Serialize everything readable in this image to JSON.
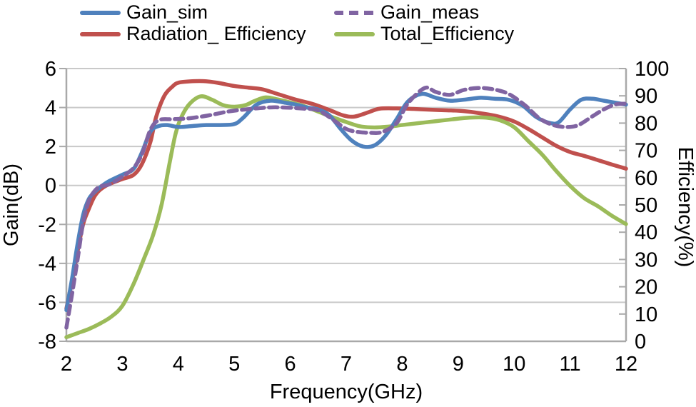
{
  "chart_data": {
    "type": "line",
    "title": "",
    "xlabel": "Frequency(GHz)",
    "ylabel_left": "Gain(dB)",
    "ylabel_right": "Efficiency(%)",
    "x_range": [
      2,
      12
    ],
    "x_ticks": [
      2,
      3,
      4,
      5,
      6,
      7,
      8,
      9,
      10,
      11,
      12
    ],
    "y_left_range": [
      -8,
      6
    ],
    "y_left_ticks": [
      6,
      4,
      2,
      0,
      -2,
      -4,
      -6,
      -8
    ],
    "y_right_range": [
      0,
      100
    ],
    "y_right_ticks": [
      100,
      90,
      80,
      70,
      60,
      50,
      40,
      30,
      20,
      10,
      0
    ],
    "grid": "horizontal-only",
    "legend_position": "top",
    "colors": {
      "grid": "#c9c9c9",
      "axis": "#a9a9a9",
      "text": "#000000"
    },
    "series": [
      {
        "name": "Gain_sim",
        "axis": "left",
        "color": "#4F81BD",
        "style": "solid",
        "points": [
          [
            2.0,
            -6.4
          ],
          [
            2.1,
            -4.8
          ],
          [
            2.2,
            -3.0
          ],
          [
            2.3,
            -1.5
          ],
          [
            2.4,
            -0.7
          ],
          [
            2.5,
            -0.35
          ],
          [
            2.6,
            -0.1
          ],
          [
            2.75,
            0.2
          ],
          [
            3.0,
            0.55
          ],
          [
            3.2,
            0.85
          ],
          [
            3.35,
            1.7
          ],
          [
            3.5,
            2.75
          ],
          [
            3.65,
            3.05
          ],
          [
            3.8,
            3.1
          ],
          [
            4.0,
            3.0
          ],
          [
            4.25,
            3.05
          ],
          [
            4.5,
            3.1
          ],
          [
            4.75,
            3.1
          ],
          [
            5.0,
            3.15
          ],
          [
            5.15,
            3.45
          ],
          [
            5.4,
            4.15
          ],
          [
            5.65,
            4.35
          ],
          [
            5.9,
            4.25
          ],
          [
            6.1,
            4.15
          ],
          [
            6.3,
            4.0
          ],
          [
            6.5,
            3.9
          ],
          [
            6.7,
            3.6
          ],
          [
            6.9,
            2.9
          ],
          [
            7.1,
            2.3
          ],
          [
            7.3,
            2.0
          ],
          [
            7.5,
            2.05
          ],
          [
            7.7,
            2.55
          ],
          [
            7.9,
            3.4
          ],
          [
            8.1,
            4.3
          ],
          [
            8.35,
            4.7
          ],
          [
            8.6,
            4.5
          ],
          [
            8.85,
            4.35
          ],
          [
            9.1,
            4.4
          ],
          [
            9.4,
            4.5
          ],
          [
            9.65,
            4.45
          ],
          [
            9.9,
            4.4
          ],
          [
            10.15,
            4.1
          ],
          [
            10.4,
            3.5
          ],
          [
            10.65,
            3.2
          ],
          [
            10.8,
            3.25
          ],
          [
            11.0,
            3.9
          ],
          [
            11.2,
            4.4
          ],
          [
            11.4,
            4.45
          ],
          [
            11.6,
            4.35
          ],
          [
            11.8,
            4.25
          ],
          [
            12.0,
            4.15
          ]
        ]
      },
      {
        "name": "Gain_meas",
        "axis": "left",
        "color": "#8064A2",
        "style": "dashed",
        "points": [
          [
            2.0,
            -7.3
          ],
          [
            2.1,
            -5.6
          ],
          [
            2.2,
            -3.8
          ],
          [
            2.3,
            -1.9
          ],
          [
            2.4,
            -0.8
          ],
          [
            2.5,
            -0.3
          ],
          [
            2.6,
            -0.05
          ],
          [
            2.7,
            0.0
          ],
          [
            2.8,
            0.1
          ],
          [
            3.0,
            0.45
          ],
          [
            3.2,
            0.9
          ],
          [
            3.35,
            1.6
          ],
          [
            3.5,
            2.85
          ],
          [
            3.65,
            3.35
          ],
          [
            3.9,
            3.4
          ],
          [
            4.2,
            3.45
          ],
          [
            4.55,
            3.6
          ],
          [
            4.9,
            3.8
          ],
          [
            5.2,
            3.9
          ],
          [
            5.6,
            4.0
          ],
          [
            5.9,
            4.0
          ],
          [
            6.2,
            3.95
          ],
          [
            6.5,
            3.85
          ],
          [
            6.8,
            3.3
          ],
          [
            7.0,
            2.9
          ],
          [
            7.2,
            2.75
          ],
          [
            7.45,
            2.7
          ],
          [
            7.65,
            2.75
          ],
          [
            7.9,
            3.2
          ],
          [
            8.1,
            4.2
          ],
          [
            8.4,
            5.0
          ],
          [
            8.6,
            4.8
          ],
          [
            8.85,
            4.65
          ],
          [
            9.1,
            4.9
          ],
          [
            9.35,
            5.0
          ],
          [
            9.6,
            4.95
          ],
          [
            9.9,
            4.7
          ],
          [
            10.2,
            4.1
          ],
          [
            10.45,
            3.45
          ],
          [
            10.7,
            3.1
          ],
          [
            10.95,
            3.0
          ],
          [
            11.15,
            3.1
          ],
          [
            11.4,
            3.55
          ],
          [
            11.6,
            3.9
          ],
          [
            11.8,
            4.15
          ],
          [
            12.0,
            4.2
          ]
        ]
      },
      {
        "name": "Radiation_ Efficiency",
        "axis": "right",
        "color": "#C0504D",
        "style": "solid",
        "points": [
          [
            2.0,
            12
          ],
          [
            2.1,
            22
          ],
          [
            2.2,
            33
          ],
          [
            2.3,
            43
          ],
          [
            2.4,
            48.5
          ],
          [
            2.5,
            53
          ],
          [
            2.6,
            55.5
          ],
          [
            2.75,
            57.5
          ],
          [
            3.0,
            59.5
          ],
          [
            3.2,
            61
          ],
          [
            3.35,
            65
          ],
          [
            3.5,
            73
          ],
          [
            3.6,
            82
          ],
          [
            3.75,
            90
          ],
          [
            3.9,
            93.5
          ],
          [
            4.0,
            94.8
          ],
          [
            4.2,
            95.3
          ],
          [
            4.45,
            95.4
          ],
          [
            4.7,
            94.8
          ],
          [
            5.0,
            93.6
          ],
          [
            5.25,
            93
          ],
          [
            5.5,
            92.4
          ],
          [
            5.8,
            90.5
          ],
          [
            6.1,
            88.6
          ],
          [
            6.4,
            87
          ],
          [
            6.7,
            84.8
          ],
          [
            6.95,
            82.8
          ],
          [
            7.15,
            82.4
          ],
          [
            7.4,
            84
          ],
          [
            7.6,
            85.3
          ],
          [
            7.9,
            85.4
          ],
          [
            8.2,
            85.2
          ],
          [
            8.5,
            84.9
          ],
          [
            8.8,
            84.7
          ],
          [
            9.1,
            84.4
          ],
          [
            9.4,
            83.6
          ],
          [
            9.7,
            82.5
          ],
          [
            10.0,
            80.6
          ],
          [
            10.25,
            77.9
          ],
          [
            10.5,
            74.8
          ],
          [
            10.75,
            71.7
          ],
          [
            11.0,
            69.4
          ],
          [
            11.25,
            68
          ],
          [
            11.5,
            66.4
          ],
          [
            11.75,
            64.8
          ],
          [
            12.0,
            63.3
          ]
        ]
      },
      {
        "name": "Total_Efficiency",
        "axis": "right",
        "color": "#9BBB59",
        "style": "solid",
        "points": [
          [
            2.0,
            1.5
          ],
          [
            2.2,
            3
          ],
          [
            2.4,
            4.5
          ],
          [
            2.6,
            6.5
          ],
          [
            2.8,
            9
          ],
          [
            3.0,
            13
          ],
          [
            3.2,
            21
          ],
          [
            3.4,
            31
          ],
          [
            3.55,
            39
          ],
          [
            3.7,
            50
          ],
          [
            3.85,
            66
          ],
          [
            3.95,
            76
          ],
          [
            4.05,
            82
          ],
          [
            4.2,
            87
          ],
          [
            4.4,
            89.8
          ],
          [
            4.6,
            88.6
          ],
          [
            4.8,
            86.6
          ],
          [
            5.0,
            86.0
          ],
          [
            5.2,
            86.6
          ],
          [
            5.35,
            88.0
          ],
          [
            5.55,
            89.4
          ],
          [
            5.75,
            88.8
          ],
          [
            6.0,
            87.6
          ],
          [
            6.25,
            86.2
          ],
          [
            6.5,
            84.2
          ],
          [
            6.75,
            82.2
          ],
          [
            7.0,
            80.4
          ],
          [
            7.25,
            78.8
          ],
          [
            7.5,
            78.4
          ],
          [
            7.75,
            78.7
          ],
          [
            8.0,
            79.3
          ],
          [
            8.3,
            80.0
          ],
          [
            8.6,
            80.7
          ],
          [
            8.9,
            81.4
          ],
          [
            9.2,
            82.0
          ],
          [
            9.5,
            82.0
          ],
          [
            9.75,
            81.0
          ],
          [
            10.0,
            78.5
          ],
          [
            10.25,
            73.5
          ],
          [
            10.5,
            68.5
          ],
          [
            10.75,
            62.5
          ],
          [
            11.0,
            57.0
          ],
          [
            11.25,
            52.5
          ],
          [
            11.5,
            49.5
          ],
          [
            11.75,
            46.0
          ],
          [
            12.0,
            43.0
          ]
        ]
      }
    ]
  }
}
